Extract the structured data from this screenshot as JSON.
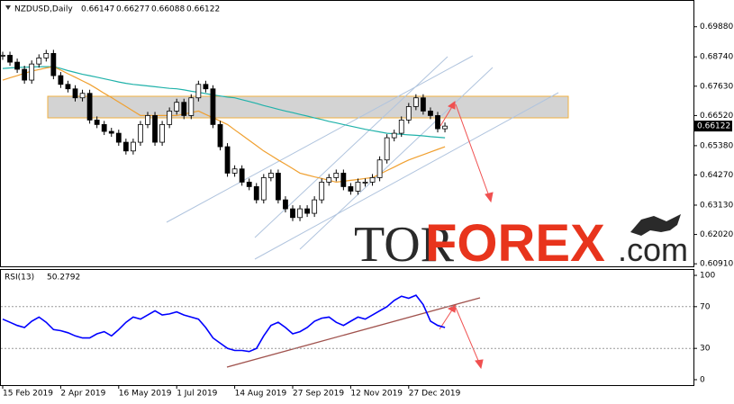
{
  "chart_data": [
    {
      "type": "candlestick",
      "title": "NZDUSD,Daily",
      "ohlc": [
        0.66147,
        0.66277,
        0.66088,
        0.66122
      ],
      "categories": [
        "15 Feb 2019",
        null,
        null,
        null,
        null,
        null,
        null,
        null,
        "2 Apr 2019",
        null,
        null,
        null,
        null,
        null,
        null,
        null,
        "16 May 2019",
        null,
        null,
        null,
        null,
        null,
        null,
        null,
        "1 Jul 2019",
        null,
        null,
        null,
        null,
        null,
        null,
        null,
        "14 Aug 2019",
        null,
        null,
        null,
        null,
        null,
        null,
        null,
        "27 Sep 2019",
        null,
        null,
        null,
        null,
        null,
        null,
        null,
        "12 Nov 2019",
        null,
        null,
        null,
        null,
        null,
        null,
        null,
        "27 Dec 2019",
        null,
        null,
        null,
        null,
        null
      ],
      "close": [
        0.688,
        0.6854,
        0.6827,
        0.6786,
        0.6847,
        0.687,
        0.6887,
        0.6803,
        0.677,
        0.6753,
        0.6719,
        0.6736,
        0.6635,
        0.6618,
        0.6592,
        0.6585,
        0.6551,
        0.6518,
        0.6551,
        0.6618,
        0.6652,
        0.6551,
        0.6618,
        0.6669,
        0.6702,
        0.6652,
        0.6719,
        0.677,
        0.6753,
        0.6618,
        0.6534,
        0.6434,
        0.645,
        0.64,
        0.6383,
        0.6333,
        0.6417,
        0.6434,
        0.6333,
        0.6299,
        0.6266,
        0.6299,
        0.6282,
        0.6333,
        0.64,
        0.6417,
        0.6434,
        0.6383,
        0.6366,
        0.64,
        0.64,
        0.6417,
        0.6484,
        0.6568,
        0.6585,
        0.6635,
        0.6686,
        0.6719,
        0.6669,
        0.6652,
        0.6602,
        0.6612
      ],
      "lines": [
        {
          "color": "#20b2aa",
          "values": [
            0.683,
            0.6832,
            0.6834,
            0.6835,
            0.6836,
            0.6837,
            0.6837,
            0.6837,
            0.683,
            0.6822,
            0.6815,
            0.6808,
            0.6803,
            0.6797,
            0.6791,
            0.6785,
            0.6779,
            0.6774,
            0.677,
            0.6767,
            0.6764,
            0.6761,
            0.6758,
            0.6755,
            0.6753,
            0.6749,
            0.6744,
            0.674,
            0.6735,
            0.673,
            0.6726,
            0.6722,
            0.6719,
            0.6712,
            0.6705,
            0.6698,
            0.669,
            0.6683,
            0.6676,
            0.6669,
            0.6663,
            0.6656,
            0.665,
            0.6643,
            0.6637,
            0.663,
            0.6624,
            0.6618,
            0.6612,
            0.6606,
            0.66,
            0.6595,
            0.659,
            0.6585,
            0.6583,
            0.6581,
            0.6579,
            0.6577,
            0.6575,
            0.6572,
            0.657,
            0.6568
          ]
        },
        {
          "color": "#f0a030",
          "values": [
            0.6786,
            0.6795,
            0.6803,
            0.6812,
            0.682,
            0.6826,
            0.6832,
            0.6837,
            0.6824,
            0.681,
            0.6797,
            0.6783,
            0.677,
            0.6753,
            0.6736,
            0.672,
            0.6703,
            0.6686,
            0.6669,
            0.6652,
            0.6652,
            0.6652,
            0.6652,
            0.6652,
            0.6652,
            0.6658,
            0.6663,
            0.6669,
            0.6656,
            0.6644,
            0.6631,
            0.6618,
            0.6598,
            0.6578,
            0.6558,
            0.6538,
            0.6518,
            0.6501,
            0.6484,
            0.6468,
            0.6451,
            0.6434,
            0.6427,
            0.642,
            0.6414,
            0.6407,
            0.64,
            0.6403,
            0.6407,
            0.641,
            0.6414,
            0.6417,
            0.643,
            0.6444,
            0.6457,
            0.6471,
            0.6484,
            0.6494,
            0.6504,
            0.6514,
            0.6524,
            0.6534
          ]
        }
      ],
      "ylim": [
        0.6078,
        0.7079
      ],
      "yticks": [
        {
          "value": 0.6988,
          "label": "0.69880"
        },
        {
          "value": 0.6874,
          "label": "0.68740"
        },
        {
          "value": 0.6763,
          "label": "0.67630"
        },
        {
          "value": 0.6652,
          "label": "0.66520"
        },
        {
          "value": 0.6538,
          "label": "0.65380"
        },
        {
          "value": 0.6427,
          "label": "0.64270"
        },
        {
          "value": 0.6313,
          "label": "0.63130"
        },
        {
          "value": 0.6202,
          "label": "0.62020"
        },
        {
          "value": 0.6091,
          "label": "0.60910"
        }
      ],
      "up_color": "#ffffff",
      "down_color": "#000000"
    },
    {
      "type": "line",
      "title": "RSI(13)",
      "last": 50.2792,
      "color": "#0000ff",
      "values": [
        58,
        55,
        52,
        50,
        56,
        60,
        55,
        48,
        47,
        45,
        42,
        40,
        40,
        44,
        46,
        42,
        48,
        55,
        60,
        58,
        62,
        66,
        62,
        63,
        65,
        62,
        60,
        58,
        50,
        40,
        35,
        30,
        28,
        28,
        27,
        30,
        42,
        52,
        55,
        50,
        44,
        46,
        50,
        56,
        59,
        60,
        55,
        52,
        56,
        60,
        58,
        62,
        66,
        70,
        76,
        80,
        78,
        81,
        72,
        56,
        52,
        50
      ],
      "ylim": [
        -5.2,
        105.2
      ],
      "yticks": [
        100,
        70,
        30,
        0
      ]
    }
  ],
  "watermark": [
    "TOR",
    "FOREX",
    ".com"
  ]
}
